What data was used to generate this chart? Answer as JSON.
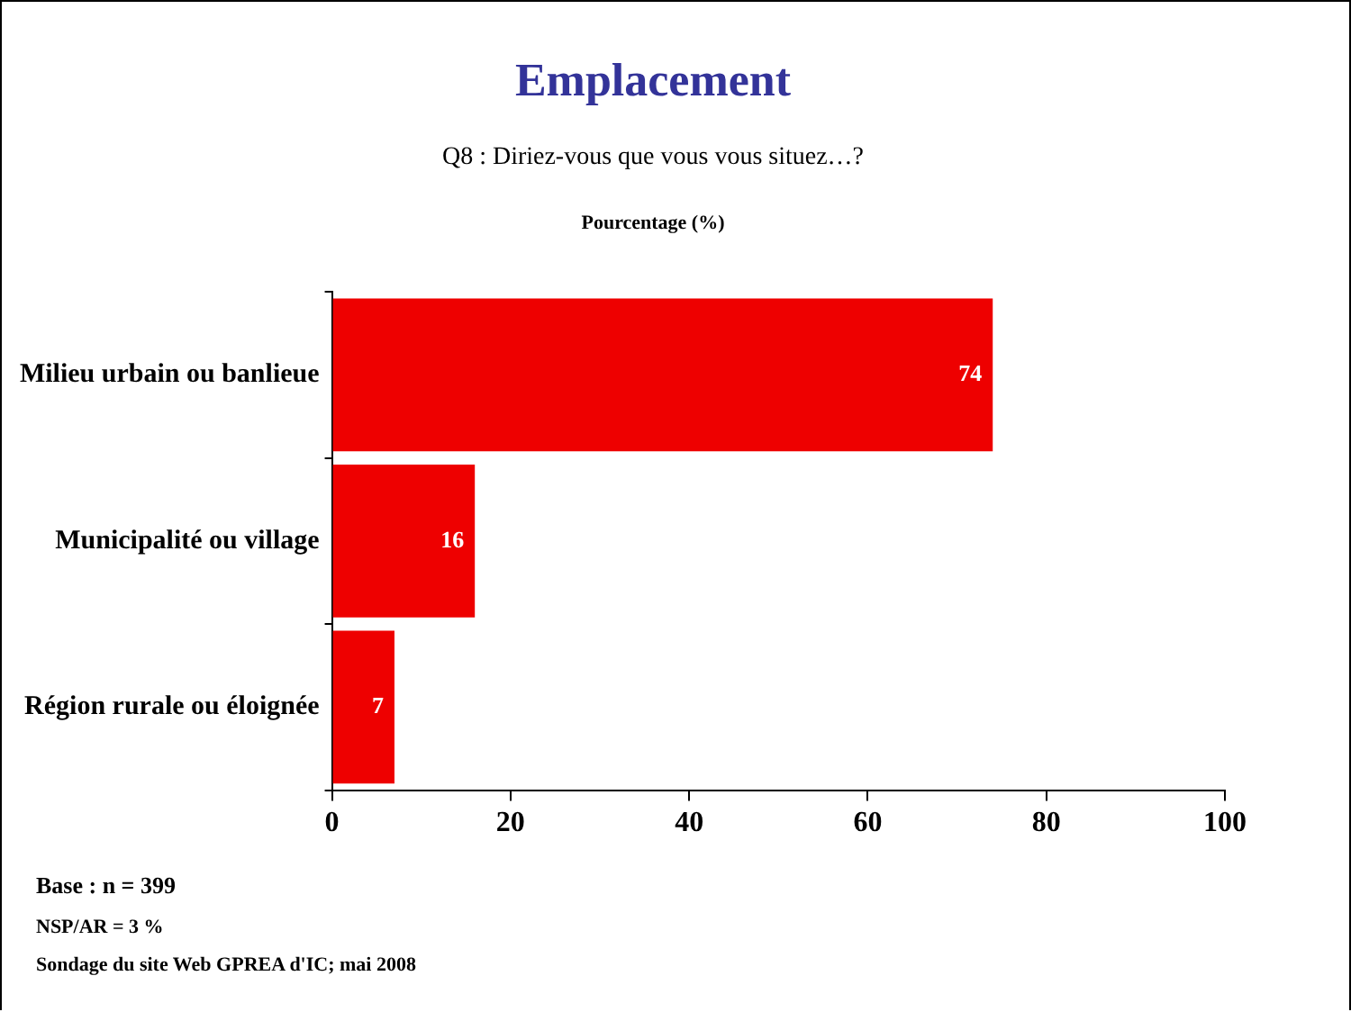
{
  "chart_data": {
    "type": "bar",
    "orientation": "horizontal",
    "title": "Emplacement",
    "subtitle": "Q8 : Diriez-vous que vous vous situez…?",
    "xlabel": "Pourcentage (%)",
    "categories": [
      "Milieu urbain ou banlieue",
      "Municipalité ou village",
      "Région rurale ou éloignée"
    ],
    "values": [
      74,
      16,
      7
    ],
    "color": "#ee0000",
    "data_labels": true,
    "grid": false,
    "legend": false,
    "xlim": [
      0,
      100
    ],
    "xticks": [
      0,
      20,
      40,
      60,
      80,
      100
    ],
    "annotations": [
      "Base : n = 399",
      "NSP/AR = 3 %",
      "Sondage du site Web GPREA d'IC; mai 2008"
    ]
  }
}
